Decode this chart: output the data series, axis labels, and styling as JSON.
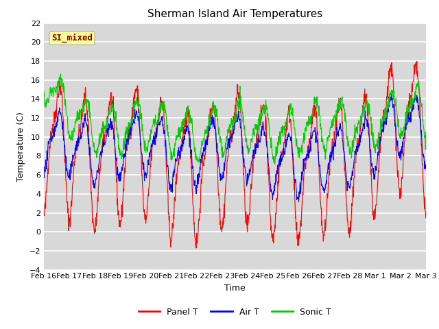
{
  "title": "Sherman Island Air Temperatures",
  "xlabel": "Time",
  "ylabel": "Temperature (C)",
  "ylim": [
    -4,
    22
  ],
  "yticks": [
    -4,
    -2,
    0,
    2,
    4,
    6,
    8,
    10,
    12,
    14,
    16,
    18,
    20,
    22
  ],
  "x_labels": [
    "Feb 16",
    "Feb 17",
    "Feb 18",
    "Feb 19",
    "Feb 20",
    "Feb 21",
    "Feb 22",
    "Feb 23",
    "Feb 24",
    "Feb 25",
    "Feb 26",
    "Feb 27",
    "Feb 28",
    "Mar 1",
    "Mar 2",
    "Mar 3"
  ],
  "annotation_text": "SI_mixed",
  "annotation_color": "#8B0000",
  "annotation_bg": "#FFFF99",
  "panel_color": "#FF0000",
  "air_color": "#0000FF",
  "sonic_color": "#00CC00",
  "bg_color": "#D8D8D8",
  "legend_labels": [
    "Panel T",
    "Air T",
    "Sonic T"
  ],
  "title_fontsize": 11,
  "label_fontsize": 9,
  "tick_fontsize": 8
}
